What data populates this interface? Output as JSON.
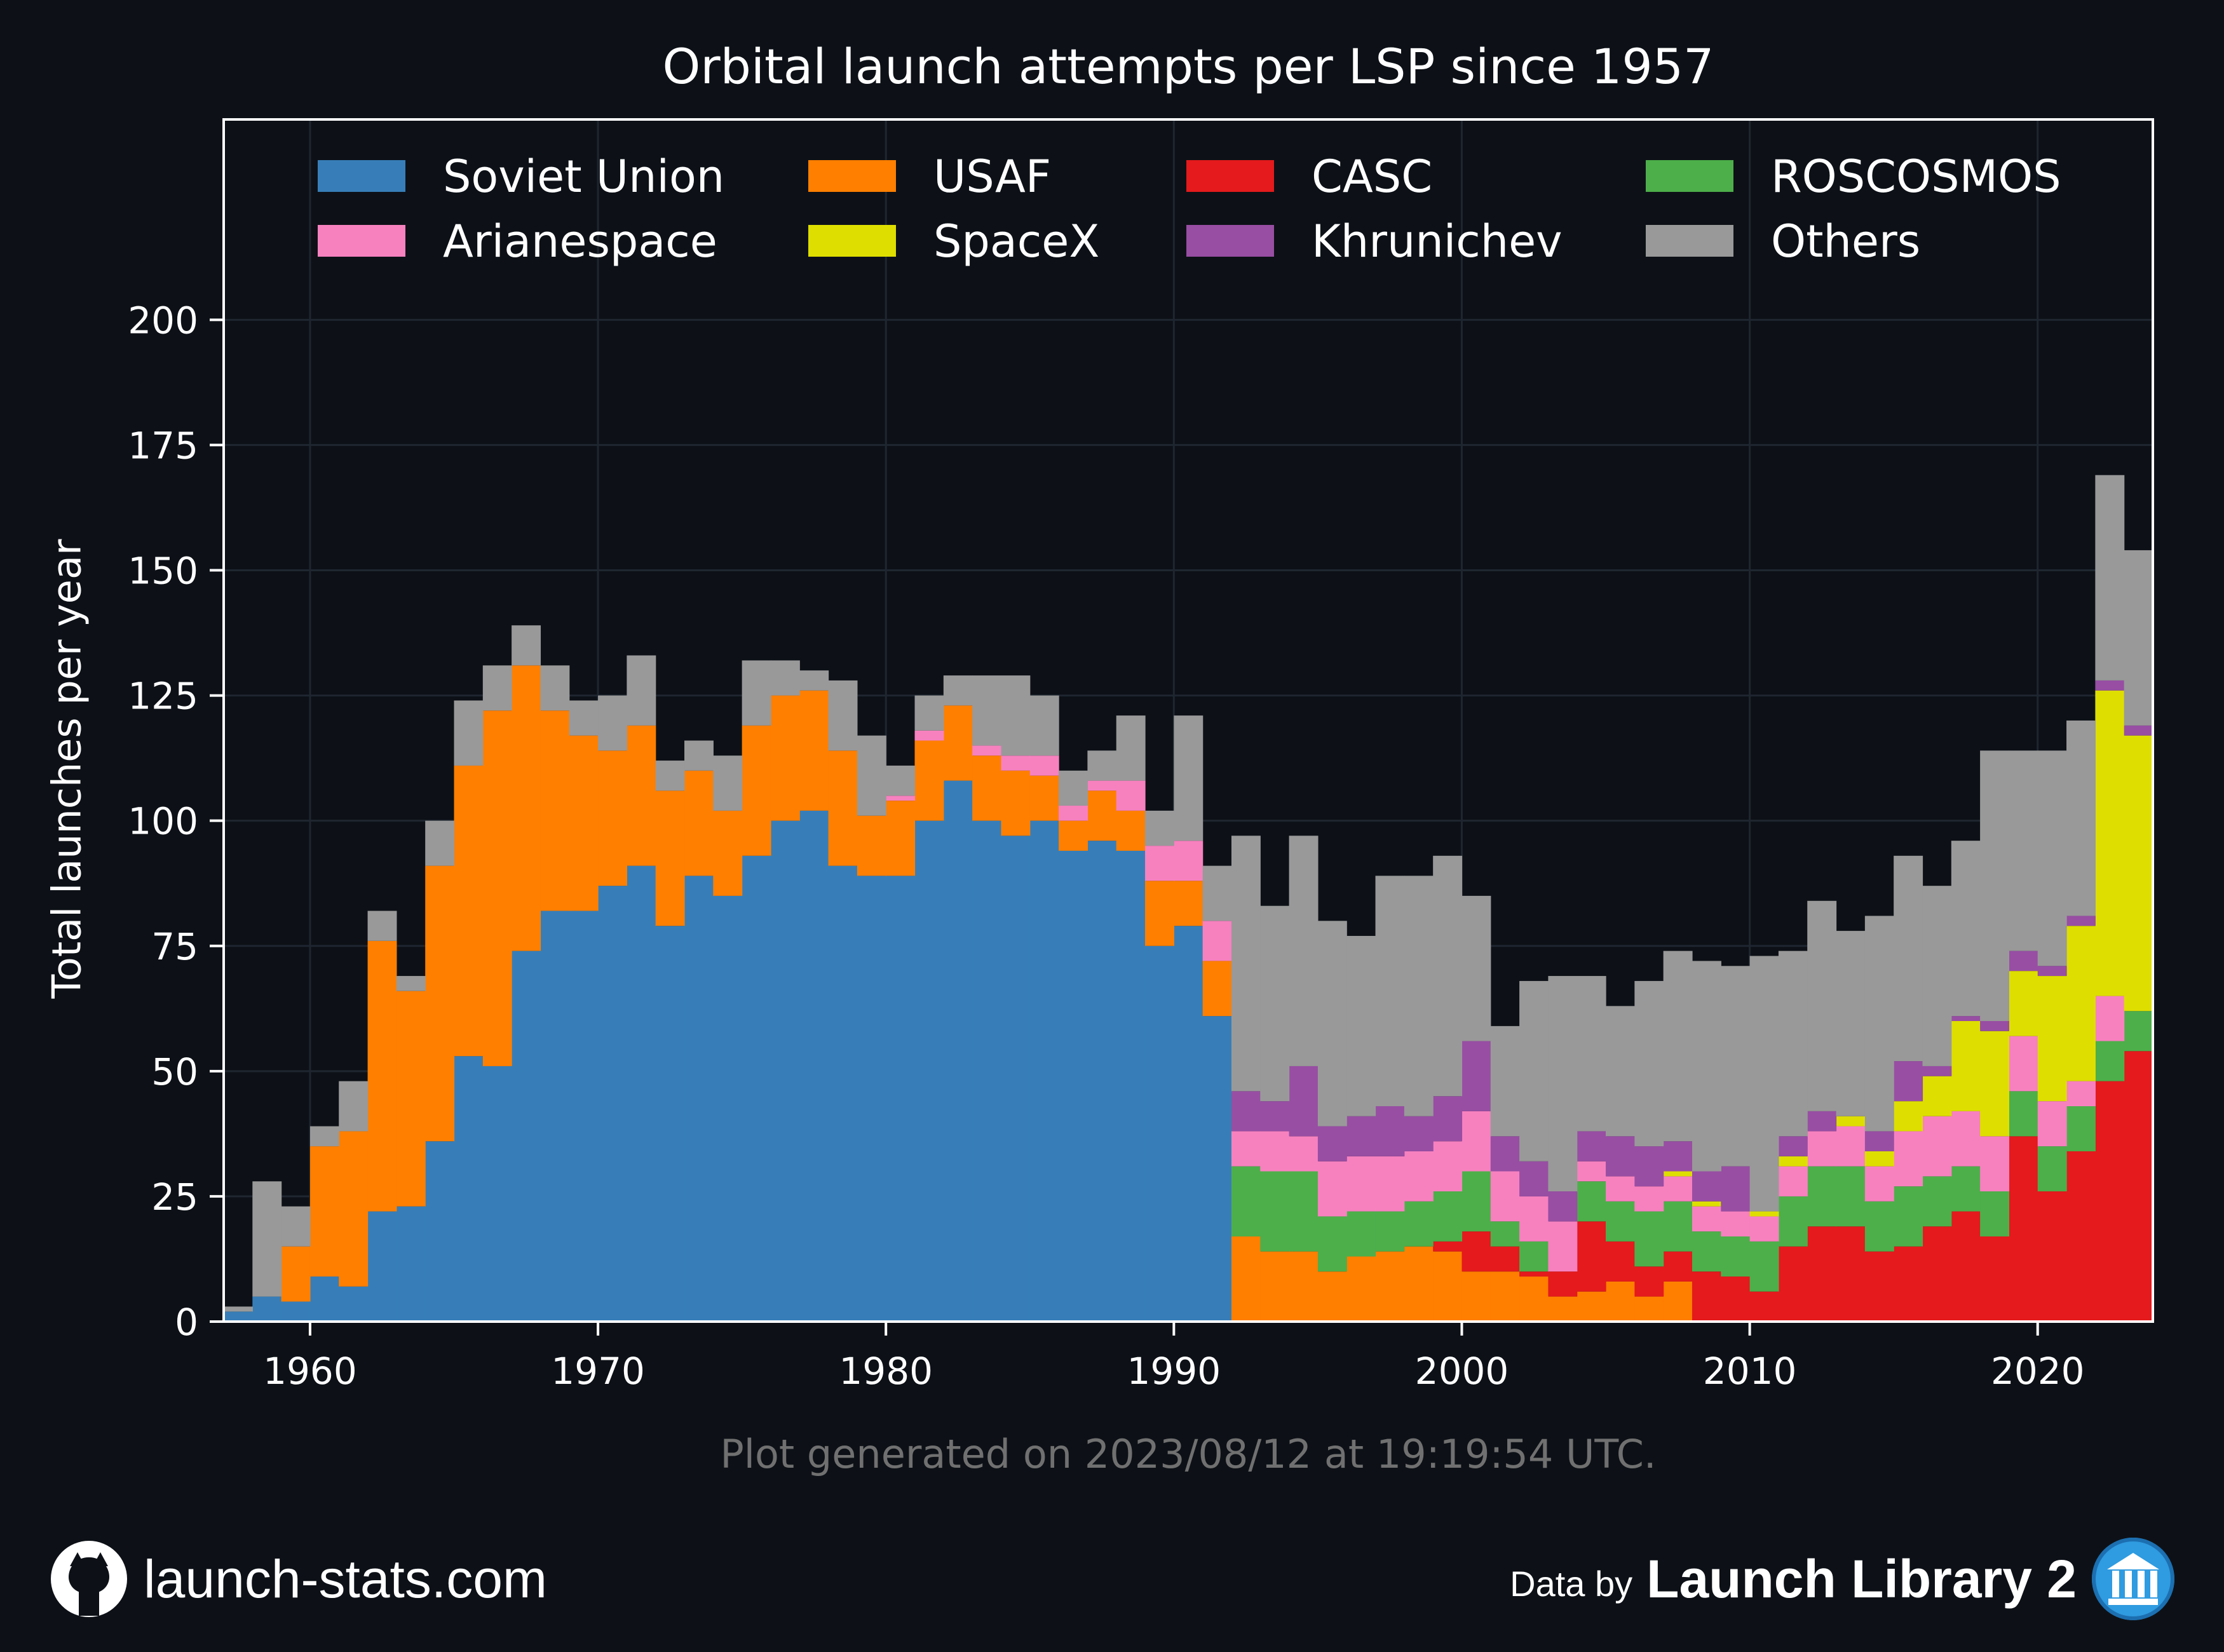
{
  "title": "Orbital launch attempts per LSP since 1957",
  "ylabel": "Total launches per year",
  "footer": {
    "generated": "Plot generated on 2023/08/12 at 19:19:54 UTC.",
    "site": "launch-stats.com",
    "data_by": "Data by",
    "source": "Launch Library 2",
    "github_icon": "github-icon",
    "source_icon": "library-building-icon"
  },
  "colors": {
    "background": "#0d1117",
    "Soviet Union": "#377eb8",
    "USAF": "#ff7f00",
    "CASC": "#e41a1c",
    "ROSCOSMOS": "#4daf4a",
    "Arianespace": "#f781bf",
    "SpaceX": "#dede00",
    "Khrunichev": "#984ea3",
    "Others": "#999999"
  },
  "chart_data": {
    "type": "bar",
    "stacked": true,
    "title": "Orbital launch attempts per LSP since 1957",
    "xlabel": "",
    "ylabel": "Total launches per year",
    "xlim": [
      1957,
      2024
    ],
    "ylim": [
      0,
      240
    ],
    "xticks": [
      1960,
      1970,
      1980,
      1990,
      2000,
      2010,
      2020
    ],
    "yticks": [
      0,
      25,
      50,
      75,
      100,
      125,
      150,
      175,
      200
    ],
    "grid": true,
    "legend": {
      "position": "top",
      "columns": 4
    },
    "legend_order": [
      "Soviet Union",
      "USAF",
      "CASC",
      "ROSCOSMOS",
      "Arianespace",
      "SpaceX",
      "Khrunichev",
      "Others"
    ],
    "x": [
      1957,
      1958,
      1959,
      1960,
      1961,
      1962,
      1963,
      1964,
      1965,
      1966,
      1967,
      1968,
      1969,
      1970,
      1971,
      1972,
      1973,
      1974,
      1975,
      1976,
      1977,
      1978,
      1979,
      1980,
      1981,
      1982,
      1983,
      1984,
      1985,
      1986,
      1987,
      1988,
      1989,
      1990,
      1991,
      1992,
      1993,
      1994,
      1995,
      1996,
      1997,
      1998,
      1999,
      2000,
      2001,
      2002,
      2003,
      2004,
      2005,
      2006,
      2007,
      2008,
      2009,
      2010,
      2011,
      2012,
      2013,
      2014,
      2015,
      2016,
      2017,
      2018,
      2019,
      2020,
      2021,
      2022,
      2023
    ],
    "series": [
      {
        "name": "Soviet Union",
        "values": [
          2,
          5,
          4,
          9,
          7,
          22,
          23,
          36,
          53,
          51,
          74,
          82,
          82,
          87,
          91,
          79,
          89,
          85,
          93,
          100,
          102,
          91,
          89,
          89,
          100,
          108,
          100,
          97,
          100,
          94,
          96,
          94,
          75,
          79,
          61,
          0,
          0,
          0,
          0,
          0,
          0,
          0,
          0,
          0,
          0,
          0,
          0,
          0,
          0,
          0,
          0,
          0,
          0,
          0,
          0,
          0,
          0,
          0,
          0,
          0,
          0,
          0,
          0,
          0,
          0,
          0,
          0
        ]
      },
      {
        "name": "USAF",
        "values": [
          0,
          0,
          11,
          26,
          31,
          54,
          43,
          55,
          58,
          71,
          57,
          40,
          35,
          27,
          28,
          27,
          21,
          17,
          26,
          25,
          24,
          23,
          12,
          15,
          16,
          15,
          13,
          13,
          9,
          6,
          10,
          8,
          13,
          9,
          11,
          17,
          14,
          14,
          10,
          13,
          14,
          15,
          14,
          10,
          10,
          9,
          5,
          6,
          8,
          5,
          8,
          0,
          0,
          0,
          0,
          0,
          0,
          0,
          0,
          0,
          0,
          0,
          0,
          0,
          0,
          0,
          0
        ]
      },
      {
        "name": "CASC",
        "values": [
          0,
          0,
          0,
          0,
          0,
          0,
          0,
          0,
          0,
          0,
          0,
          0,
          0,
          0,
          0,
          0,
          0,
          0,
          0,
          0,
          0,
          0,
          0,
          0,
          0,
          0,
          0,
          0,
          0,
          0,
          0,
          0,
          0,
          0,
          0,
          0,
          0,
          0,
          0,
          0,
          0,
          0,
          2,
          8,
          5,
          1,
          5,
          14,
          8,
          6,
          6,
          10,
          9,
          6,
          15,
          19,
          19,
          14,
          15,
          19,
          22,
          17,
          37,
          26,
          34,
          48,
          54
        ]
      },
      {
        "name": "ROSCOSMOS",
        "values": [
          0,
          0,
          0,
          0,
          0,
          0,
          0,
          0,
          0,
          0,
          0,
          0,
          0,
          0,
          0,
          0,
          0,
          0,
          0,
          0,
          0,
          0,
          0,
          0,
          0,
          0,
          0,
          0,
          0,
          0,
          0,
          0,
          0,
          0,
          0,
          14,
          16,
          16,
          11,
          9,
          8,
          9,
          10,
          12,
          5,
          6,
          0,
          8,
          8,
          11,
          10,
          8,
          8,
          10,
          10,
          12,
          12,
          10,
          12,
          10,
          9,
          9,
          9,
          9,
          9,
          8,
          8
        ]
      },
      {
        "name": "Arianespace",
        "values": [
          0,
          0,
          0,
          0,
          0,
          0,
          0,
          0,
          0,
          0,
          0,
          0,
          0,
          0,
          0,
          0,
          0,
          0,
          0,
          0,
          0,
          0,
          0,
          1,
          2,
          0,
          2,
          3,
          4,
          3,
          2,
          6,
          7,
          8,
          8,
          7,
          8,
          7,
          11,
          11,
          11,
          10,
          10,
          12,
          10,
          9,
          10,
          4,
          5,
          5,
          5,
          5,
          5,
          5,
          6,
          7,
          8,
          7,
          11,
          12,
          11,
          11,
          11,
          9,
          5,
          9,
          0
        ]
      },
      {
        "name": "SpaceX",
        "values": [
          0,
          0,
          0,
          0,
          0,
          0,
          0,
          0,
          0,
          0,
          0,
          0,
          0,
          0,
          0,
          0,
          0,
          0,
          0,
          0,
          0,
          0,
          0,
          0,
          0,
          0,
          0,
          0,
          0,
          0,
          0,
          0,
          0,
          0,
          0,
          0,
          0,
          0,
          0,
          0,
          0,
          0,
          0,
          0,
          0,
          0,
          0,
          0,
          0,
          0,
          1,
          1,
          0,
          1,
          2,
          0,
          2,
          3,
          6,
          8,
          18,
          21,
          13,
          25,
          31,
          61,
          55
        ]
      },
      {
        "name": "Khrunichev",
        "values": [
          0,
          0,
          0,
          0,
          0,
          0,
          0,
          0,
          0,
          0,
          0,
          0,
          0,
          0,
          0,
          0,
          0,
          0,
          0,
          0,
          0,
          0,
          0,
          0,
          0,
          0,
          0,
          0,
          0,
          0,
          0,
          0,
          0,
          0,
          0,
          8,
          6,
          14,
          7,
          8,
          10,
          7,
          9,
          14,
          7,
          7,
          6,
          6,
          8,
          8,
          6,
          6,
          9,
          0,
          4,
          4,
          0,
          4,
          8,
          2,
          1,
          2,
          4,
          2,
          2,
          2,
          2
        ]
      },
      {
        "name": "Others",
        "values": [
          1,
          23,
          8,
          4,
          10,
          6,
          3,
          9,
          13,
          9,
          8,
          9,
          7,
          11,
          14,
          6,
          6,
          11,
          13,
          7,
          4,
          14,
          16,
          6,
          7,
          6,
          14,
          16,
          12,
          7,
          6,
          13,
          7,
          25,
          11,
          51,
          39,
          46,
          41,
          36,
          46,
          48,
          48,
          29,
          22,
          36,
          43,
          31,
          26,
          33,
          38,
          42,
          40,
          51,
          37,
          42,
          37,
          43,
          41,
          36,
          35,
          54,
          40,
          43,
          39,
          41,
          35
        ]
      }
    ]
  }
}
